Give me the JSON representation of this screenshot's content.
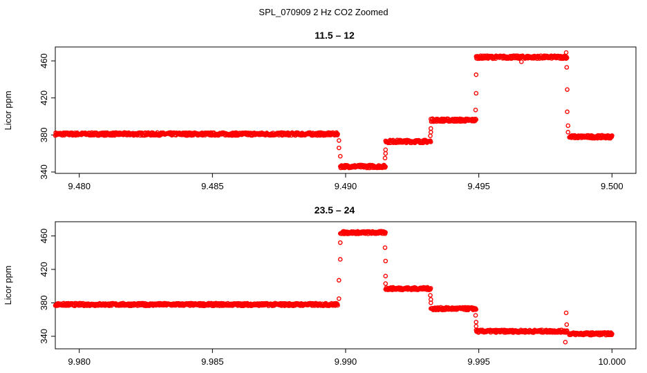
{
  "chart_data": {
    "title": "SPL_070909  2 Hz CO2 Zoomed",
    "color": "#ff0000",
    "panels": [
      {
        "type": "scatter",
        "title": "11.5 – 12",
        "xlabel": "",
        "ylabel": "Licor ppm",
        "xlim": [
          9.4791,
          9.5009
        ],
        "ylim": [
          338.5,
          475
        ],
        "xticks": [
          9.48,
          9.485,
          9.49,
          9.495,
          9.5
        ],
        "xtick_labels": [
          "9.480",
          "9.485",
          "9.490",
          "9.495",
          "9.500"
        ],
        "yticks": [
          340,
          380,
          420,
          460
        ],
        "ytick_labels": [
          "340",
          "380",
          "420",
          "460"
        ],
        "levels": [
          {
            "x0": 9.4791,
            "x1": 9.4897,
            "y": 381
          },
          {
            "x0": 9.4898,
            "x1": 9.4915,
            "y": 346
          },
          {
            "x0": 9.4915,
            "x1": 9.4932,
            "y": 373
          },
          {
            "x0": 9.4932,
            "x1": 9.4949,
            "y": 396
          },
          {
            "x0": 9.4949,
            "x1": 9.4983,
            "y": 464
          },
          {
            "x0": 9.4984,
            "x1": 9.5,
            "y": 378
          }
        ],
        "points": [
          [
            9.48975,
            374
          ],
          [
            9.48975,
            366
          ],
          [
            9.4898,
            357
          ],
          [
            9.49148,
            355
          ],
          [
            9.4915,
            360
          ],
          [
            9.4915,
            364
          ],
          [
            9.49318,
            379
          ],
          [
            9.4932,
            383
          ],
          [
            9.4932,
            387
          ],
          [
            9.49488,
            407
          ],
          [
            9.4949,
            425
          ],
          [
            9.4949,
            445
          ],
          [
            9.4966,
            459
          ],
          [
            9.49828,
            469
          ],
          [
            9.4983,
            453
          ],
          [
            9.49832,
            429
          ],
          [
            9.49832,
            405
          ],
          [
            9.49835,
            390
          ],
          [
            9.49835,
            383
          ]
        ]
      },
      {
        "type": "scatter",
        "title": "23.5 – 24",
        "xlabel": "",
        "ylabel": "Licor ppm",
        "xlim": [
          9.9791,
          10.0009
        ],
        "ylim": [
          325,
          477
        ],
        "xticks": [
          9.98,
          9.985,
          9.99,
          9.995,
          10.0
        ],
        "xtick_labels": [
          "9.980",
          "9.985",
          "9.990",
          "9.995",
          "10.000"
        ],
        "yticks": [
          340,
          380,
          420,
          460
        ],
        "ytick_labels": [
          "340",
          "380",
          "420",
          "460"
        ],
        "levels": [
          {
            "x0": 9.9791,
            "x1": 9.9897,
            "y": 378
          },
          {
            "x0": 9.9898,
            "x1": 9.9915,
            "y": 464
          },
          {
            "x0": 9.9915,
            "x1": 9.9932,
            "y": 397
          },
          {
            "x0": 9.9932,
            "x1": 9.9949,
            "y": 373
          },
          {
            "x0": 9.9949,
            "x1": 9.9983,
            "y": 346
          },
          {
            "x0": 9.9984,
            "x1": 10.0,
            "y": 343
          }
        ],
        "points": [
          [
            9.98975,
            385
          ],
          [
            9.98975,
            407
          ],
          [
            9.9898,
            432
          ],
          [
            9.9898,
            452
          ],
          [
            9.99148,
            446
          ],
          [
            9.9915,
            430
          ],
          [
            9.9915,
            412
          ],
          [
            9.9915,
            403
          ],
          [
            9.99318,
            389
          ],
          [
            9.9932,
            384
          ],
          [
            9.9932,
            380
          ],
          [
            9.99488,
            365
          ],
          [
            9.9949,
            357
          ],
          [
            9.9949,
            352
          ],
          [
            9.99828,
            368
          ],
          [
            9.9983,
            354
          ],
          [
            9.99825,
            333
          ]
        ]
      }
    ]
  }
}
